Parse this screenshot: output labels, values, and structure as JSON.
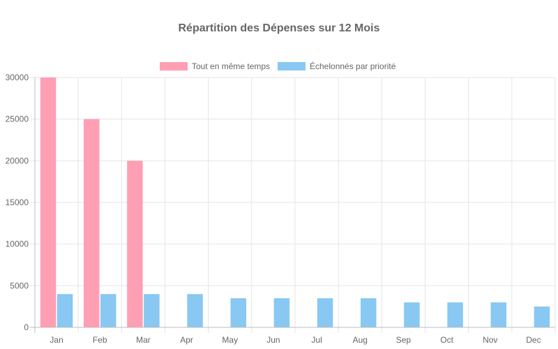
{
  "chart_data": {
    "type": "bar",
    "title": "Répartition des Dépenses sur 12 Mois",
    "categories": [
      "Jan",
      "Feb",
      "Mar",
      "Apr",
      "May",
      "Jun",
      "Jul",
      "Aug",
      "Sep",
      "Oct",
      "Nov",
      "Dec"
    ],
    "series": [
      {
        "name": "Tout en même temps",
        "color": "#ff9fb3",
        "values": [
          30000,
          25000,
          20000,
          0,
          0,
          0,
          0,
          0,
          0,
          0,
          0,
          0
        ]
      },
      {
        "name": "Échelonnés par priorité",
        "color": "#88c8f2",
        "values": [
          4000,
          4000,
          4000,
          4000,
          3500,
          3500,
          3500,
          3500,
          3000,
          3000,
          3000,
          2500
        ]
      }
    ],
    "ylim": [
      0,
      30000
    ],
    "yticks": [
      "0",
      "5000",
      "10000",
      "15000",
      "20000",
      "25000",
      "30000"
    ],
    "grid": true,
    "legend_position": "top"
  }
}
